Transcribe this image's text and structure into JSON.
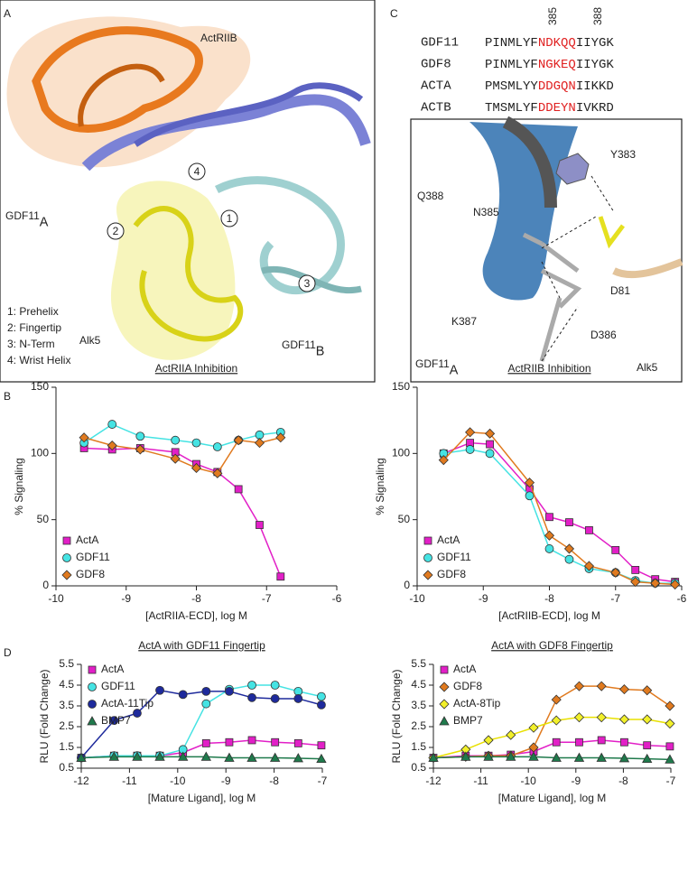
{
  "panel_labels": [
    "A",
    "B",
    "C",
    "D"
  ],
  "panel_a": {
    "labels": [
      {
        "text": "ActRIIB"
      },
      {
        "text": "GDF11",
        "sub": "A"
      },
      {
        "text": "Alk5"
      },
      {
        "text": "GDF11",
        "sub": "B"
      }
    ],
    "circles": [
      "1",
      "2",
      "3",
      "4"
    ],
    "key": [
      "1: Prehelix",
      "2: Fingertip",
      "3: N-Term",
      "4: Wrist Helix"
    ]
  },
  "panel_c": {
    "positions": [
      "385",
      "388"
    ],
    "alignment": [
      {
        "name": "GDF11",
        "pre": "PINMLYF",
        "mid": "NDKQQ",
        "post": "IIYGK"
      },
      {
        "name": "GDF8",
        "pre": "PINMLYF",
        "mid": "NGKEQ",
        "post": "IIYGK"
      },
      {
        "name": "ACTA",
        "pre": "PMSMLYY",
        "mid": "DDGQN",
        "post": "IIKKD"
      },
      {
        "name": "ACTB",
        "pre": "TMSMLYF",
        "mid": "DDEYN",
        "post": "IVKRD"
      }
    ],
    "residues": [
      "Y383",
      "Q388",
      "N385",
      "D81",
      "K387",
      "D386"
    ],
    "chains": [
      {
        "text": "GDF11",
        "sub": "A"
      },
      {
        "text": "Alk5"
      }
    ]
  },
  "chart_data": [
    {
      "type": "line",
      "title": "ActRIIA Inhibition",
      "x_label": "[ActRIIA-ECD], log M",
      "y_label": "% Signaling",
      "x": [
        -9.6,
        -9.2,
        -8.8,
        -8.3,
        -8.0,
        -7.7,
        -7.4,
        -7.1,
        -6.8
      ],
      "series": [
        {
          "name": "ActA",
          "color": "#e21fc7",
          "marker": "square",
          "values": [
            104,
            103,
            104,
            101,
            92,
            86,
            73,
            46,
            7
          ]
        },
        {
          "name": "GDF11",
          "color": "#45e3e3",
          "marker": "circle",
          "values": [
            108,
            122,
            113,
            110,
            108,
            105,
            110,
            114,
            116
          ]
        },
        {
          "name": "GDF8",
          "color": "#e07a1f",
          "marker": "diamond",
          "values": [
            112,
            106,
            103,
            96,
            89,
            85,
            110,
            108,
            112
          ]
        }
      ],
      "xlim": [
        -10,
        -6
      ],
      "xticks": [
        -10,
        -9,
        -8,
        -7,
        -6
      ],
      "ylim": [
        0,
        150
      ],
      "yticks": [
        0,
        50,
        100,
        150
      ],
      "legend": "lower left"
    },
    {
      "type": "line",
      "title": "ActRIIB Inhibition",
      "x_label": "[ActRIIB-ECD], log M",
      "y_label": "% Signaling",
      "x": [
        -9.6,
        -9.2,
        -8.9,
        -8.3,
        -8.0,
        -7.7,
        -7.4,
        -7.0,
        -6.7,
        -6.4,
        -6.1
      ],
      "series": [
        {
          "name": "ActA",
          "color": "#e21fc7",
          "marker": "square",
          "values": [
            100,
            108,
            107,
            73,
            52,
            48,
            42,
            27,
            12,
            5,
            3
          ]
        },
        {
          "name": "GDF11",
          "color": "#45e3e3",
          "marker": "circle",
          "values": [
            100,
            103,
            100,
            68,
            28,
            20,
            13,
            10,
            4,
            2,
            2
          ]
        },
        {
          "name": "GDF8",
          "color": "#e07a1f",
          "marker": "diamond",
          "values": [
            95,
            116,
            115,
            78,
            38,
            28,
            15,
            10,
            3,
            2,
            1
          ]
        }
      ],
      "xlim": [
        -10,
        -6
      ],
      "xticks": [
        -10,
        -9,
        -8,
        -7,
        -6
      ],
      "ylim": [
        0,
        150
      ],
      "yticks": [
        0,
        50,
        100,
        150
      ],
      "legend": "lower left"
    },
    {
      "type": "line",
      "title": "ActA with GDF11 Fingertip",
      "x_label": "[Mature Ligand], log M",
      "y_label": "RLU (Fold Change)",
      "x": [
        -12,
        -11.32,
        -10.84,
        -10.37,
        -9.89,
        -9.41,
        -8.93,
        -8.46,
        -7.98,
        -7.5,
        -7.02
      ],
      "series": [
        {
          "name": "ActA",
          "color": "#e21fc7",
          "marker": "square",
          "values": [
            1.0,
            1.1,
            1.1,
            1.1,
            1.25,
            1.7,
            1.75,
            1.85,
            1.75,
            1.7,
            1.6
          ]
        },
        {
          "name": "GDF11",
          "color": "#45e3e3",
          "marker": "circle",
          "values": [
            1.0,
            1.1,
            1.1,
            1.1,
            1.4,
            3.6,
            4.3,
            4.5,
            4.5,
            4.2,
            3.95
          ]
        },
        {
          "name": "ActA-11Tip",
          "color": "#1e2a9c",
          "marker": "circle",
          "values": [
            1.0,
            2.8,
            3.15,
            4.25,
            4.05,
            4.2,
            4.2,
            3.9,
            3.85,
            3.85,
            3.55
          ]
        },
        {
          "name": "BMP7",
          "color": "#1f7a4c",
          "marker": "triangle",
          "values": [
            1.0,
            1.05,
            1.05,
            1.05,
            1.05,
            1.05,
            1.0,
            1.0,
            1.0,
            0.98,
            0.95
          ]
        }
      ],
      "xlim": [
        -12,
        -7
      ],
      "xticks": [
        -12,
        -11,
        -10,
        -9,
        -8,
        -7
      ],
      "ylim": [
        0.5,
        5.5
      ],
      "yticks": [
        0.5,
        1.5,
        2.5,
        3.5,
        4.5,
        5.5
      ],
      "legend": "upper left"
    },
    {
      "type": "line",
      "title": "ActA with GDF8 Fingertip",
      "x_label": "[Mature Ligand], log M",
      "y_label": "RLU (Fold Change)",
      "x": [
        -12,
        -11.32,
        -10.84,
        -10.37,
        -9.89,
        -9.41,
        -8.93,
        -8.46,
        -7.98,
        -7.5,
        -7.02
      ],
      "series": [
        {
          "name": "ActA",
          "color": "#e21fc7",
          "marker": "square",
          "values": [
            1.0,
            1.1,
            1.1,
            1.15,
            1.3,
            1.75,
            1.75,
            1.85,
            1.75,
            1.6,
            1.55
          ]
        },
        {
          "name": "GDF8",
          "color": "#e07a1f",
          "marker": "diamond",
          "values": [
            1.0,
            1.05,
            1.1,
            1.1,
            1.5,
            3.8,
            4.45,
            4.45,
            4.3,
            4.25,
            3.5
          ]
        },
        {
          "name": "ActA-8Tip",
          "color": "#f2f02a",
          "marker": "diamond",
          "values": [
            1.0,
            1.4,
            1.85,
            2.1,
            2.45,
            2.8,
            2.95,
            2.95,
            2.85,
            2.85,
            2.65
          ]
        },
        {
          "name": "BMP7",
          "color": "#1f7a4c",
          "marker": "triangle",
          "values": [
            1.0,
            1.05,
            1.05,
            1.05,
            1.05,
            1.0,
            1.0,
            1.0,
            0.98,
            0.95,
            0.92
          ]
        }
      ],
      "xlim": [
        -12,
        -7
      ],
      "xticks": [
        -12,
        -11,
        -10,
        -9,
        -8,
        -7
      ],
      "ylim": [
        0.5,
        5.5
      ],
      "yticks": [
        0.5,
        1.5,
        2.5,
        3.5,
        4.5,
        5.5
      ],
      "legend": "upper left"
    }
  ]
}
